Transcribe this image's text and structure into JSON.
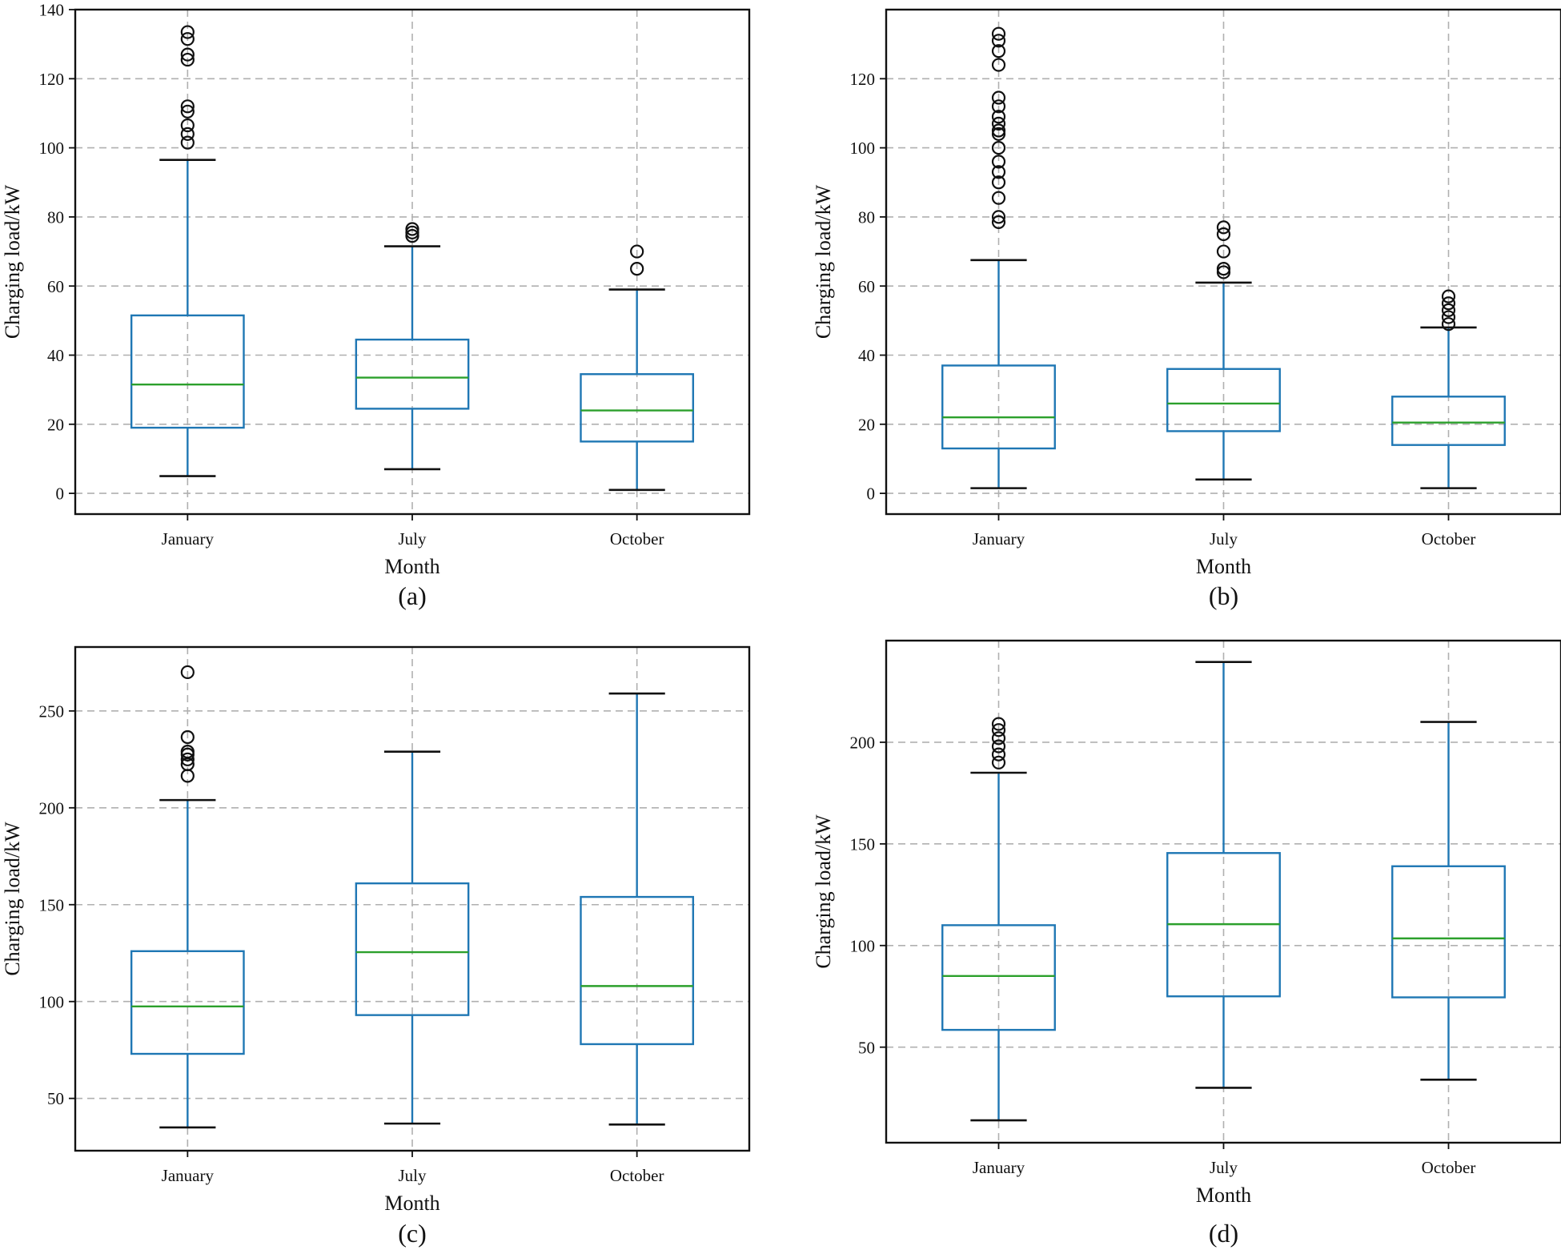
{
  "chart_data": [
    {
      "type": "box",
      "panel_label": "(a)",
      "xlabel": "Month",
      "ylabel": "Charging load/kW",
      "categories": [
        "January",
        "July",
        "October"
      ],
      "ylim": [
        -6,
        140
      ],
      "yticks": [
        0,
        20,
        40,
        60,
        80,
        100,
        120,
        140
      ],
      "grid": true,
      "boxes": [
        {
          "whislo": 5,
          "q1": 19,
          "med": 31.5,
          "q3": 51.5,
          "whishi": 96.5,
          "fliers": [
            101.5,
            104,
            106.5,
            110.5,
            112,
            125.5,
            127,
            131.5,
            133.5
          ]
        },
        {
          "whislo": 7,
          "q1": 24.5,
          "med": 33.5,
          "q3": 44.5,
          "whishi": 71.5,
          "fliers": [
            74.5,
            75.5,
            76.5
          ]
        },
        {
          "whislo": 1,
          "q1": 15,
          "med": 24,
          "q3": 34.5,
          "whishi": 59,
          "fliers": [
            65,
            70
          ]
        }
      ]
    },
    {
      "type": "box",
      "panel_label": "(b)",
      "xlabel": "Month",
      "ylabel": "Charging load/kW",
      "categories": [
        "January",
        "July",
        "October"
      ],
      "ylim": [
        -6,
        140
      ],
      "yticks": [
        0,
        20,
        40,
        60,
        80,
        100,
        120
      ],
      "grid": true,
      "boxes": [
        {
          "whislo": 1.5,
          "q1": 13,
          "med": 22,
          "q3": 37,
          "whishi": 67.5,
          "fliers": [
            78.5,
            80,
            85.5,
            90,
            93,
            96,
            100,
            104,
            105,
            107,
            109,
            112,
            114.5,
            124,
            128,
            131,
            133
          ]
        },
        {
          "whislo": 4,
          "q1": 18,
          "med": 26,
          "q3": 36,
          "whishi": 61,
          "fliers": [
            64,
            65,
            70,
            75,
            77
          ]
        },
        {
          "whislo": 1.5,
          "q1": 14,
          "med": 20.5,
          "q3": 28,
          "whishi": 48,
          "fliers": [
            49,
            51,
            53,
            55,
            57
          ]
        }
      ]
    },
    {
      "type": "box",
      "panel_label": "(c)",
      "xlabel": "Month",
      "ylabel": "Charging load/kW",
      "categories": [
        "January",
        "July",
        "October"
      ],
      "ylim": [
        23,
        283
      ],
      "yticks": [
        50,
        100,
        150,
        200,
        250
      ],
      "grid": true,
      "boxes": [
        {
          "whislo": 35,
          "q1": 73,
          "med": 97.5,
          "q3": 126,
          "whishi": 204,
          "fliers": [
            216.5,
            222.5,
            225,
            227.5,
            229,
            236.5,
            270
          ]
        },
        {
          "whislo": 37,
          "q1": 93,
          "med": 125.5,
          "q3": 161,
          "whishi": 229,
          "fliers": []
        },
        {
          "whislo": 36.5,
          "q1": 78,
          "med": 108,
          "q3": 154,
          "whishi": 259,
          "fliers": []
        }
      ]
    },
    {
      "type": "box",
      "panel_label": "(d)",
      "xlabel": "Month",
      "ylabel": "Charging load/kW",
      "categories": [
        "January",
        "July",
        "October"
      ],
      "ylim": [
        3,
        250
      ],
      "yticks": [
        50,
        100,
        150,
        200
      ],
      "grid": true,
      "boxes": [
        {
          "whislo": 14,
          "q1": 58.5,
          "med": 85,
          "q3": 110,
          "whishi": 185,
          "fliers": [
            190,
            194,
            198,
            202,
            206,
            209
          ]
        },
        {
          "whislo": 30,
          "q1": 75,
          "med": 110.5,
          "q3": 145.5,
          "whishi": 239.5,
          "fliers": []
        },
        {
          "whislo": 34,
          "q1": 74.5,
          "med": 103.5,
          "q3": 139,
          "whishi": 210,
          "fliers": []
        }
      ]
    }
  ]
}
